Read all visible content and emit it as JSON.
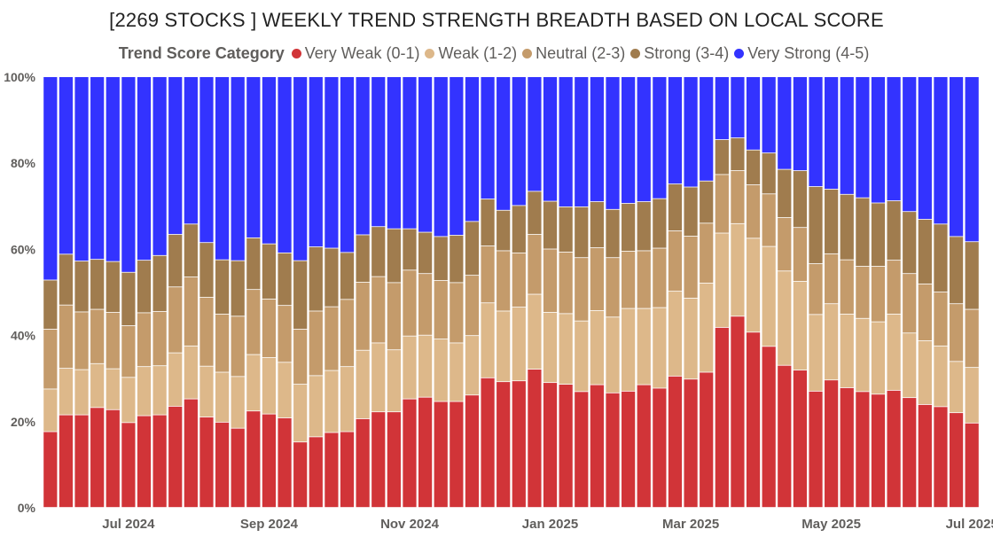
{
  "chart_data": {
    "type": "bar",
    "stacked": "percent",
    "title": "[2269 STOCKS ] WEEKLY TREND STRENGTH BREADTH BASED ON LOCAL SCORE",
    "legend": {
      "title": "Trend Score Category",
      "placement": "top"
    },
    "ylim": [
      0,
      100
    ],
    "yticks": [
      "0%",
      "20%",
      "40%",
      "60%",
      "80%",
      "100%"
    ],
    "xtick_labels": [
      {
        "label": "Jul 2024",
        "at": 5
      },
      {
        "label": "Sep 2024",
        "at": 14
      },
      {
        "label": "Nov 2024",
        "at": 23
      },
      {
        "label": "Jan 2025",
        "at": 32
      },
      {
        "label": "Mar 2025",
        "at": 41
      },
      {
        "label": "May 2025",
        "at": 50
      },
      {
        "label": "Jul 2025",
        "at": 59
      }
    ],
    "series": [
      {
        "name": "Very Weak (0-1)",
        "color": "#d13438",
        "values": [
          17.6,
          21.5,
          21.5,
          23.2,
          22.7,
          19.7,
          21.3,
          21.5,
          23.5,
          25.2,
          21,
          19.8,
          18.4,
          22.4,
          21.7,
          20.8,
          15.2,
          16.4,
          17.4,
          17.6,
          20.6,
          22.2,
          22.2,
          25.2,
          25.6,
          24.6,
          24.6,
          26.1,
          30.1,
          29.2,
          29.4,
          32.1,
          29,
          28.6,
          26.9,
          28.5,
          26.6,
          27,
          28.5,
          27.7,
          30.5,
          29.8,
          31.4,
          41.8,
          44.4,
          40.7,
          37.4,
          33,
          31.9,
          27,
          29.6,
          27.8,
          26.9,
          26.3,
          27.2,
          25.5,
          23.9,
          23.4,
          22,
          19.6
        ]
      },
      {
        "name": "Weak (1-2)",
        "color": "#ddb88a",
        "values": [
          9.9,
          10.8,
          10.5,
          10.2,
          9.5,
          10.5,
          11.4,
          11.4,
          12.4,
          12.3,
          11.8,
          11.6,
          12,
          13.1,
          13.1,
          12.9,
          13.4,
          14.2,
          14.4,
          15.1,
          15.9,
          16,
          14.4,
          14.6,
          14.4,
          14.5,
          13.6,
          13.8,
          17.4,
          16.4,
          17.1,
          17.4,
          16.3,
          16.4,
          16.4,
          17.2,
          17.6,
          19.2,
          17.7,
          18.7,
          19.7,
          18.8,
          20.7,
          21.9,
          21.5,
          21.8,
          23.2,
          21.9,
          20.6,
          17.8,
          17.7,
          17.1,
          17,
          16.8,
          17.7,
          15,
          14.8,
          14.1,
          11.9,
          12.9
        ]
      },
      {
        "name": "Neutral (2-3)",
        "color": "#c49b6b",
        "values": [
          13.9,
          14.7,
          13.4,
          12.6,
          13.1,
          12,
          12.5,
          12.6,
          15.3,
          16,
          16,
          13.5,
          14,
          15.1,
          13.6,
          13.2,
          12.8,
          15,
          14.8,
          15.6,
          15.8,
          15.4,
          15.6,
          15.3,
          14.3,
          13.6,
          14,
          14,
          13.2,
          14,
          12.6,
          13.9,
          14.7,
          14.3,
          14.7,
          14.6,
          13.8,
          13.3,
          13.4,
          13.8,
          14,
          14.4,
          13.9,
          13.6,
          12.3,
          12.4,
          12.2,
          12.4,
          12.5,
          11.8,
          11.6,
          12.6,
          12.1,
          12.9,
          12.5,
          13.8,
          13.2,
          12.5,
          13.4,
          13.5
        ]
      },
      {
        "name": "Strong (3-4)",
        "color": "#a07c4e",
        "values": [
          11.4,
          11.8,
          11.8,
          11.6,
          11.8,
          12.4,
          12.2,
          13,
          12.2,
          12.3,
          12.7,
          12.6,
          12.9,
          12,
          12.8,
          12.2,
          15.9,
          14.9,
          13.6,
          10.9,
          11,
          11.6,
          12.5,
          9.6,
          9.6,
          10.2,
          11,
          12.5,
          10.9,
          9.4,
          11,
          10,
          11.1,
          10.5,
          11.8,
          10.7,
          11.2,
          11.1,
          11.4,
          11.5,
          10.9,
          11.4,
          9.8,
          8.1,
          7.6,
          8.1,
          9.5,
          11.2,
          13.2,
          17.9,
          15,
          15.2,
          15.9,
          14.7,
          13.8,
          14.4,
          15,
          15.8,
          15.6,
          15.7
        ]
      },
      {
        "name": "Very Strong (4-5)",
        "color": "#3333ff",
        "values": [
          47.2,
          41.2,
          42.8,
          42.4,
          42.9,
          45.4,
          42.6,
          41.5,
          36.6,
          34.2,
          38.5,
          42.5,
          42.7,
          37.4,
          38.8,
          40.9,
          42.7,
          39.5,
          39.8,
          40.8,
          36.7,
          34.8,
          35.3,
          35.3,
          36.1,
          37.1,
          36.8,
          33.6,
          28.4,
          31,
          29.9,
          26.6,
          28.9,
          30.2,
          30.2,
          29,
          30.8,
          29.4,
          29,
          28.3,
          24.9,
          25.6,
          24.2,
          14.6,
          14.2,
          17,
          17.7,
          21.5,
          21.8,
          25.5,
          26.1,
          27.3,
          28.1,
          29.3,
          28.8,
          31.3,
          33.1,
          34.2,
          37.1,
          38.3
        ]
      }
    ]
  }
}
